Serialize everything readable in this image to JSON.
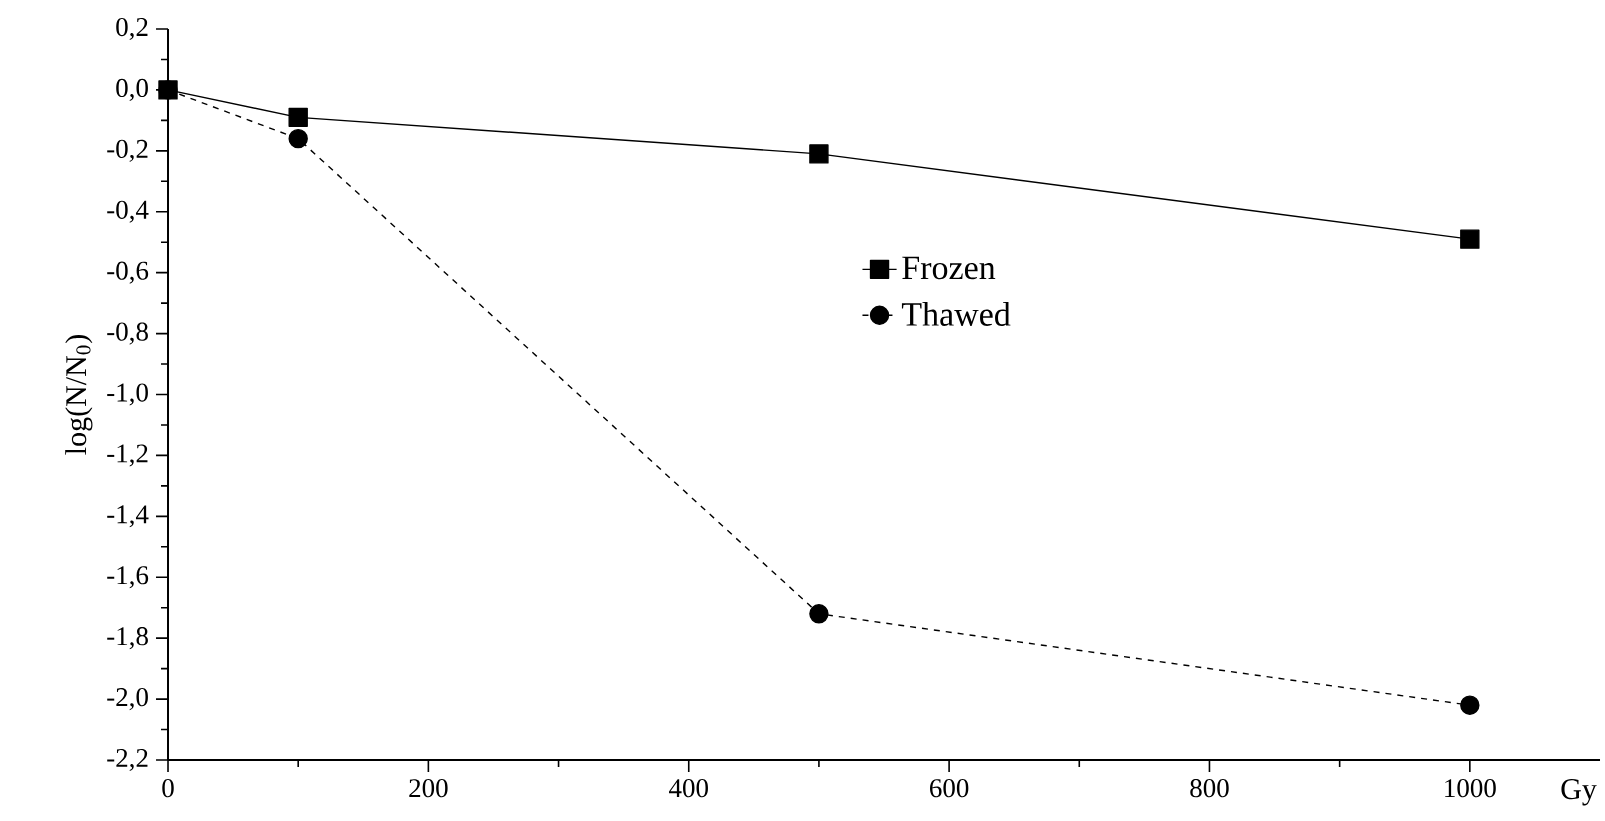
{
  "chart_data": {
    "type": "line",
    "xlabel": "Gy",
    "ylabel": "log(N/N$_{0}$)",
    "x": [
      0,
      100,
      500,
      1000
    ],
    "series": [
      {
        "name": "Frozen",
        "color": "#000000",
        "values": [
          0,
          -0.09,
          -0.21,
          -0.49
        ],
        "marker": "square",
        "line_style": "solid"
      },
      {
        "name": "Thawed",
        "color": "#000000",
        "values": [
          0,
          -0.16,
          -1.72,
          -2.02
        ],
        "marker": "circle",
        "line_style": "dashed"
      }
    ],
    "xlim": [
      0,
      1100
    ],
    "xticks": [
      0,
      200,
      400,
      600,
      800,
      1000
    ],
    "ylim": [
      -2.2,
      0.2
    ],
    "yticks": [
      {
        "value": 0.2,
        "label": "0,2"
      },
      {
        "value": 0,
        "label": "0,0"
      },
      {
        "value": -0.2,
        "label": "-0,2"
      },
      {
        "value": -0.4,
        "label": "-0,4"
      },
      {
        "value": -0.6,
        "label": "-0,6"
      },
      {
        "value": -0.8,
        "label": "-0,8"
      },
      {
        "value": -1.0,
        "label": "-1,0"
      },
      {
        "value": -1.2,
        "label": "-1,2"
      },
      {
        "value": -1.4,
        "label": "-1,4"
      },
      {
        "value": -1.6,
        "label": "-1,6"
      },
      {
        "value": -1.8,
        "label": "-1,8"
      },
      {
        "value": -2.0,
        "label": "-2,0"
      },
      {
        "value": -2.2,
        "label": "-2,2"
      }
    ],
    "legend": "center right",
    "grid": false
  }
}
